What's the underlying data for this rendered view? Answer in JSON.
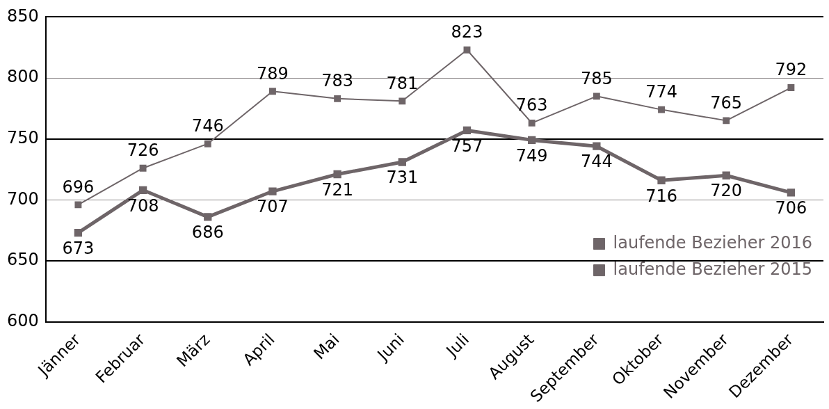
{
  "chart_data": {
    "type": "line",
    "categories": [
      "Jänner",
      "Februar",
      "März",
      "April",
      "Mai",
      "Juni",
      "Juli",
      "August",
      "September",
      "Oktober",
      "November",
      "Dezember"
    ],
    "series": [
      {
        "name": "laufende Bezieher 2016",
        "color": "#6e6568",
        "values": [
          696,
          726,
          746,
          789,
          783,
          781,
          823,
          763,
          785,
          774,
          765,
          792
        ]
      },
      {
        "name": "laufende Bezieher 2015",
        "color": "#6e6568",
        "values": [
          673,
          708,
          686,
          707,
          721,
          731,
          757,
          749,
          744,
          716,
          720,
          706
        ]
      }
    ],
    "ylim": [
      600,
      850
    ],
    "yticks": [
      600,
      650,
      700,
      750,
      800,
      850
    ],
    "grid": "y",
    "legend": "bottom right",
    "marker": "square",
    "line_style": "solid",
    "data_labels": true
  }
}
